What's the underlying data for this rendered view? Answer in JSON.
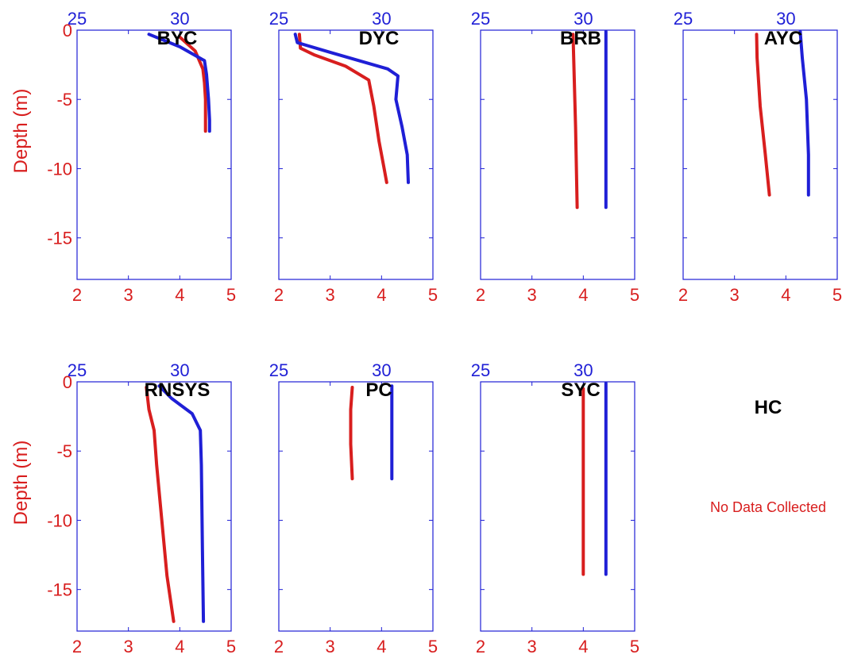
{
  "chart_data": {
    "type": "line",
    "ylabel": "Depth (m)",
    "ylim": [
      -18,
      0
    ],
    "yticks": [
      0,
      -5,
      -10,
      -15
    ],
    "bottom_axis": {
      "color": "#d81e1e",
      "lim": [
        2,
        5
      ],
      "ticks": [
        2,
        3,
        4,
        5
      ]
    },
    "top_axis": {
      "color": "#1f1fd6",
      "lim": [
        25,
        32.5
      ],
      "ticks": [
        25,
        30
      ]
    },
    "panels": [
      {
        "station": "BYC",
        "red": {
          "x": [
            4.0,
            4.3,
            4.45,
            4.48,
            4.5,
            4.5,
            4.5
          ],
          "y": [
            -0.5,
            -1.5,
            -2.8,
            -3.8,
            -5,
            -6.5,
            -7.3
          ]
        },
        "blue": {
          "x": [
            28.5,
            30.0,
            31.2,
            31.3,
            31.4,
            31.45,
            31.45
          ],
          "y": [
            -0.3,
            -1.2,
            -2.2,
            -3.2,
            -5,
            -6.5,
            -7.3
          ]
        }
      },
      {
        "station": "DYC",
        "red": {
          "x": [
            2.4,
            2.42,
            2.7,
            3.3,
            3.75,
            3.85,
            3.95,
            4.05,
            4.1
          ],
          "y": [
            -0.3,
            -1.3,
            -1.8,
            -2.6,
            -3.6,
            -5.5,
            -8,
            -10,
            -11
          ]
        },
        "blue": {
          "x": [
            25.8,
            25.9,
            27.5,
            30.3,
            30.8,
            30.7,
            31.0,
            31.25,
            31.3
          ],
          "y": [
            -0.3,
            -0.9,
            -1.6,
            -2.8,
            -3.3,
            -5,
            -7,
            -9,
            -11
          ]
        }
      },
      {
        "station": "BRB",
        "red": {
          "x": [
            3.8,
            3.85,
            3.88
          ],
          "y": [
            -0.3,
            -7,
            -12.8
          ]
        },
        "blue": {
          "x": [
            31.1,
            31.1
          ],
          "y": [
            -0.1,
            -12.8
          ]
        }
      },
      {
        "station": "AYC",
        "red": {
          "x": [
            3.43,
            3.44,
            3.5,
            3.6,
            3.68
          ],
          "y": [
            -0.3,
            -2,
            -5.5,
            -9,
            -11.9
          ]
        },
        "blue": {
          "x": [
            30.7,
            30.8,
            31.0,
            31.1,
            31.1
          ],
          "y": [
            -0.1,
            -2,
            -5,
            -9,
            -11.9
          ]
        }
      },
      {
        "station": "RNSYS",
        "red": {
          "x": [
            3.35,
            3.4,
            3.5,
            3.55,
            3.65,
            3.75,
            3.88
          ],
          "y": [
            -0.4,
            -2,
            -3.5,
            -6,
            -10,
            -14,
            -17.3
          ]
        },
        "blue": {
          "x": [
            29.0,
            29.6,
            30.6,
            31.0,
            31.05,
            31.1,
            31.15
          ],
          "y": [
            -0.3,
            -1.2,
            -2.3,
            -3.5,
            -6,
            -12,
            -17.3
          ]
        }
      },
      {
        "station": "PC",
        "red": {
          "x": [
            3.43,
            3.4,
            3.4,
            3.43
          ],
          "y": [
            -0.4,
            -2,
            -4.5,
            -7
          ]
        },
        "blue": {
          "x": [
            30.5,
            30.5
          ],
          "y": [
            -0.3,
            -7
          ]
        }
      },
      {
        "station": "SYC",
        "red": {
          "x": [
            4.0,
            4.0
          ],
          "y": [
            -0.5,
            -13.9
          ]
        },
        "blue": {
          "x": [
            31.1,
            31.1
          ],
          "y": [
            -0.1,
            -13.9
          ]
        }
      },
      {
        "station": "HC",
        "note": "No Data Collected"
      }
    ]
  }
}
